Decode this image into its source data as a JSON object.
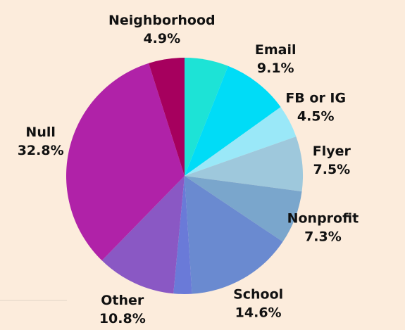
{
  "chart_data": {
    "type": "pie",
    "categories": [
      null,
      "Email",
      "FB or IG",
      "Flyer",
      "Nonprofit",
      "School",
      null,
      "Other",
      "Null",
      "Neighborhood"
    ],
    "values": [
      6.0,
      9.1,
      4.5,
      7.5,
      7.3,
      14.6,
      2.5,
      10.8,
      32.8,
      4.9
    ],
    "value_labels": [
      null,
      "9.1%",
      "4.5%",
      "7.5%",
      "7.3%",
      "14.6%",
      null,
      "10.8%",
      "32.8%",
      "4.9%"
    ],
    "colors": [
      "#1de3d6",
      "#00dcf7",
      "#9ae8f8",
      "#9ec8dc",
      "#7aa6cc",
      "#6a8ad0",
      "#6a7ad8",
      "#8a58c4",
      "#b022a8",
      "#a6005e"
    ]
  }
}
